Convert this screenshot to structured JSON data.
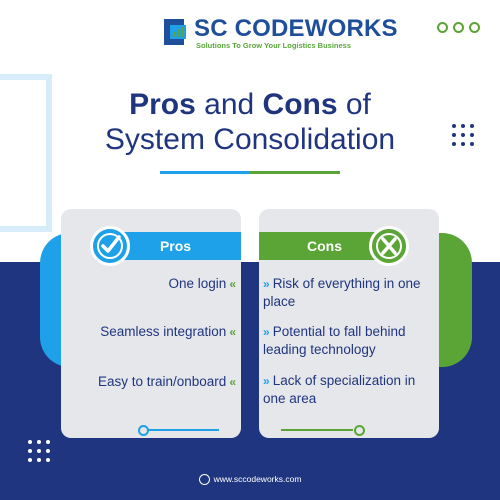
{
  "logo": {
    "name": "SC CODEWORKS",
    "tagline": "Solutions To Grow Your Logistics Business"
  },
  "title": {
    "line1_bold1": "Pros",
    "line1_mid": " and ",
    "line1_bold2": "Cons",
    "line1_end": " of",
    "line2": "System Consolidation"
  },
  "pros": {
    "header": "Pros",
    "items": [
      "One login",
      "Seamless integration",
      "Easy to train/onboard"
    ],
    "icon": "check-circle-icon"
  },
  "cons": {
    "header": "Cons",
    "items": [
      "Risk of everything in one place",
      "Potential to fall behind leading technology",
      "Lack of specialization in one area"
    ],
    "icon": "x-circle-icon"
  },
  "footer": {
    "url": "www.sccodeworks.com",
    "icon": "globe-icon"
  },
  "colors": {
    "navy": "#20357f",
    "blue": "#1ea1e8",
    "green": "#5aa535",
    "card": "#e5e7eb"
  }
}
